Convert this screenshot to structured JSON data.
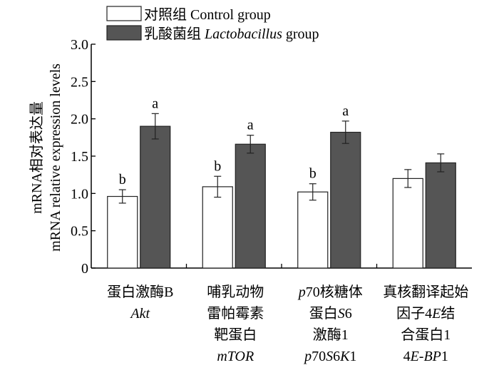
{
  "chart_data": {
    "type": "bar",
    "ylabel_cn": "mRNA相对表达量",
    "ylabel_en": "mRNA relative expression levels",
    "ylim": [
      0,
      3.0
    ],
    "yticks": [
      0,
      0.5,
      1.0,
      1.5,
      2.0,
      2.5,
      3.0
    ],
    "ytick_labels": [
      "0",
      "0.5",
      "1.0",
      "1.5",
      "2.0",
      "2.5",
      "3.0"
    ],
    "legend": [
      {
        "cn": "对照组",
        "en": "Control group",
        "en_italic": "",
        "en_tail": "",
        "color": "#ffffff"
      },
      {
        "cn": "乳酸菌组",
        "en": "",
        "en_italic": "Lactobacillus",
        "en_tail": " group",
        "color": "#555555"
      }
    ],
    "categories": [
      {
        "lines": [
          [
            {
              "t": "蛋白激酶B",
              "i": false
            }
          ],
          [
            {
              "t": "Akt",
              "i": true
            }
          ]
        ]
      },
      {
        "lines": [
          [
            {
              "t": "哺乳动物",
              "i": false
            }
          ],
          [
            {
              "t": "雷帕霉素",
              "i": false
            }
          ],
          [
            {
              "t": "靶蛋白",
              "i": false
            }
          ],
          [
            {
              "t": "mTOR",
              "i": true
            }
          ]
        ]
      },
      {
        "lines": [
          [
            {
              "t": "p",
              "i": true
            },
            {
              "t": "70核糖体",
              "i": false
            }
          ],
          [
            {
              "t": "蛋白",
              "i": false
            },
            {
              "t": "S",
              "i": true
            },
            {
              "t": "6",
              "i": false
            }
          ],
          [
            {
              "t": "激酶1",
              "i": false
            }
          ],
          [
            {
              "t": "p",
              "i": true
            },
            {
              "t": "70",
              "i": false
            },
            {
              "t": "S",
              "i": true
            },
            {
              "t": "6",
              "i": false
            },
            {
              "t": "K",
              "i": true
            },
            {
              "t": "1",
              "i": false
            }
          ]
        ]
      },
      {
        "lines": [
          [
            {
              "t": "真核翻译起始",
              "i": false
            }
          ],
          [
            {
              "t": "因子4",
              "i": false
            },
            {
              "t": "E",
              "i": true
            },
            {
              "t": "结",
              "i": false
            }
          ],
          [
            {
              "t": "合蛋白1",
              "i": false
            }
          ],
          [
            {
              "t": "4",
              "i": false
            },
            {
              "t": "E",
              "i": true
            },
            {
              "t": "-",
              "i": false
            },
            {
              "t": "BP",
              "i": true
            },
            {
              "t": "1",
              "i": false
            }
          ]
        ]
      }
    ],
    "series": [
      {
        "name": "Control group",
        "values": [
          0.96,
          1.09,
          1.02,
          1.2
        ],
        "errors": [
          0.09,
          0.14,
          0.11,
          0.12
        ],
        "labels": [
          "b",
          "b",
          "b",
          ""
        ]
      },
      {
        "name": "Lactobacillus group",
        "values": [
          1.9,
          1.66,
          1.82,
          1.41
        ],
        "errors": [
          0.17,
          0.12,
          0.15,
          0.12
        ],
        "labels": [
          "a",
          "a",
          "a",
          ""
        ]
      }
    ]
  }
}
